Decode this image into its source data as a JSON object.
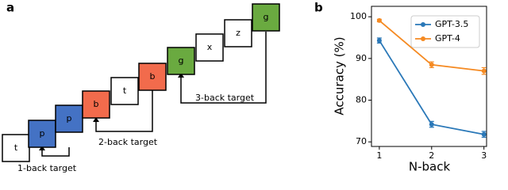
{
  "panel_a": {
    "label": "a",
    "squares": [
      {
        "label": "t",
        "color": "#ffffff"
      },
      {
        "label": "p",
        "color": "#4472c4"
      },
      {
        "label": "p",
        "color": "#4472c4"
      },
      {
        "label": "b",
        "color": "#f26b4c"
      },
      {
        "label": "t",
        "color": "#ffffff"
      },
      {
        "label": "b",
        "color": "#f26b4c"
      },
      {
        "label": "g",
        "color": "#6aaa40"
      },
      {
        "label": "x",
        "color": "#ffffff"
      },
      {
        "label": "z",
        "color": "#ffffff"
      },
      {
        "label": "g",
        "color": "#6aaa40"
      }
    ],
    "targets": [
      "1-back target",
      "2-back target",
      "3-back target"
    ]
  },
  "chart_data": {
    "type": "line",
    "panel_label": "b",
    "x_label": "N-back",
    "y_label": "Accuracy (%)",
    "x": [
      1,
      2,
      3
    ],
    "xlim": [
      0.85,
      3.05
    ],
    "xticks": [
      1,
      2,
      3
    ],
    "ylim": [
      68.9,
      102.5
    ],
    "yticks": [
      70,
      80,
      90,
      100
    ],
    "series": [
      {
        "name": "GPT-3.5",
        "color": "#2a78b8",
        "values": [
          94.3,
          74.2,
          71.8
        ],
        "errors": [
          0.6,
          0.7,
          0.7
        ]
      },
      {
        "name": "GPT-4",
        "color": "#f58a22",
        "values": [
          99.1,
          88.5,
          87.0
        ],
        "errors": [
          0.3,
          0.7,
          0.8
        ]
      }
    ],
    "legend": "upper right"
  }
}
